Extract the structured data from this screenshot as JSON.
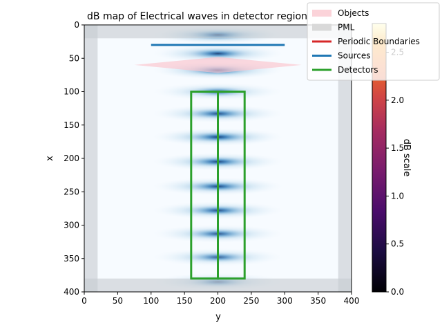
{
  "chart_data": {
    "type": "heatmap",
    "title": "dB map of Electrical waves in detector region",
    "xlabel": "y",
    "ylabel": "x",
    "xlim": [
      0,
      400
    ],
    "ylim": [
      400,
      0
    ],
    "x_ticks": [
      0,
      50,
      100,
      150,
      200,
      250,
      300,
      350,
      400
    ],
    "y_ticks": [
      0,
      50,
      100,
      150,
      200,
      250,
      300,
      350,
      400
    ],
    "grid": false,
    "legend_placement": "top-right",
    "legend": [
      {
        "name": "Objects",
        "kind": "patch",
        "color": "#fbd3d9"
      },
      {
        "name": "PML",
        "kind": "patch",
        "color": "#d9d9d9"
      },
      {
        "name": "Periodic Boundaries",
        "kind": "line",
        "color": "#d62728"
      },
      {
        "name": "Sources",
        "kind": "line",
        "color": "#1f77b4"
      },
      {
        "name": "Detectors",
        "kind": "line",
        "color": "#2ca02c"
      }
    ],
    "colorbar": {
      "label": "dB scale",
      "colormap": "inferno",
      "range": [
        0,
        2.8
      ],
      "ticks": [
        0.0,
        0.5,
        1.0,
        1.5,
        2.0,
        2.5
      ]
    },
    "pml": {
      "thickness": 20
    },
    "source_line": {
      "x": 30,
      "y_start": 100,
      "y_end": 300
    },
    "object_lens": {
      "x_center": 60,
      "y_left": 75,
      "y_right": 325,
      "half_height": 12
    },
    "detectors": [
      {
        "y_start": 160,
        "y_end": 200,
        "x_start": 100,
        "x_end": 380
      },
      {
        "y_start": 200,
        "y_end": 240,
        "x_start": 100,
        "x_end": 380
      }
    ],
    "wave_bands_x": [
      15,
      43,
      68,
      100,
      133,
      168,
      205,
      242,
      278,
      313,
      348,
      385
    ],
    "wave_band_intensity": [
      1.0,
      0.8,
      0.9,
      0.6,
      0.75,
      0.85,
      0.8,
      0.8,
      0.75,
      0.7,
      0.65,
      0.6
    ]
  }
}
